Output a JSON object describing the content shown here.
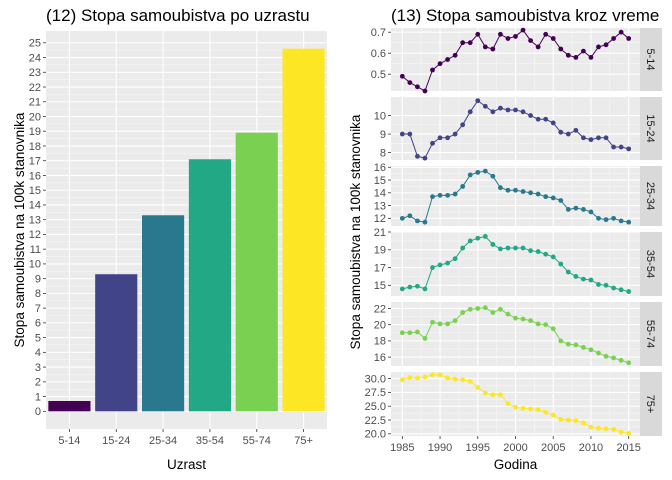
{
  "chart_data": [
    {
      "type": "bar",
      "title": "(12) Stopa samoubistva po uzrastu",
      "xlabel": "Uzrast",
      "ylabel": "Stopa samoubistva na 100k stanovnika",
      "categories": [
        "5-14",
        "15-24",
        "25-34",
        "35-54",
        "55-74",
        "75+"
      ],
      "values": [
        0.7,
        9.3,
        13.3,
        17.1,
        18.9,
        24.6
      ],
      "colors": [
        "#440154",
        "#414487",
        "#2A788E",
        "#22A884",
        "#7AD151",
        "#FDE725"
      ],
      "ylim": [
        0,
        25
      ],
      "yticks": [
        0,
        1,
        2,
        3,
        4,
        5,
        6,
        7,
        8,
        9,
        10,
        11,
        12,
        13,
        14,
        15,
        16,
        17,
        18,
        19,
        20,
        21,
        22,
        23,
        24,
        25
      ],
      "grid": true,
      "legend": "none"
    },
    {
      "type": "line",
      "title": "(13) Stopa samoubistva kroz vreme",
      "xlabel": "Godina",
      "ylabel": "Stopa samoubistva na 100k stanovnika",
      "xlim": [
        1985,
        2015
      ],
      "xticks": [
        1985,
        1990,
        1995,
        2000,
        2005,
        2010,
        2015
      ],
      "x": [
        1985,
        1986,
        1987,
        1988,
        1989,
        1990,
        1991,
        1992,
        1993,
        1994,
        1995,
        1996,
        1997,
        1998,
        1999,
        2000,
        2001,
        2002,
        2003,
        2004,
        2005,
        2006,
        2007,
        2008,
        2009,
        2010,
        2011,
        2012,
        2013,
        2014,
        2015
      ],
      "grid": true,
      "legend": "none",
      "facets": [
        {
          "strip": "5-14",
          "color": "#440154",
          "ylim": [
            0.42,
            0.72
          ],
          "yticks": [
            0.5,
            0.6,
            0.7
          ],
          "ytick_labels": [
            "0.5",
            "0.6",
            "0.7"
          ],
          "values": [
            0.49,
            0.46,
            0.44,
            0.42,
            0.52,
            0.55,
            0.57,
            0.59,
            0.65,
            0.65,
            0.69,
            0.63,
            0.62,
            0.69,
            0.67,
            0.68,
            0.71,
            0.66,
            0.63,
            0.69,
            0.67,
            0.62,
            0.59,
            0.58,
            0.61,
            0.58,
            0.63,
            0.64,
            0.67,
            0.7,
            0.67
          ]
        },
        {
          "strip": "15-24",
          "color": "#414487",
          "ylim": [
            7.6,
            11.0
          ],
          "yticks": [
            8,
            9,
            10
          ],
          "ytick_labels": [
            "8",
            "9",
            "10"
          ],
          "values": [
            9.0,
            9.0,
            7.8,
            7.7,
            8.5,
            8.8,
            8.8,
            9.0,
            9.5,
            10.2,
            10.8,
            10.5,
            10.2,
            10.4,
            10.3,
            10.3,
            10.2,
            10.0,
            9.8,
            9.8,
            9.6,
            9.1,
            9.0,
            9.2,
            8.8,
            8.7,
            8.8,
            8.8,
            8.3,
            8.3,
            8.2
          ]
        },
        {
          "strip": "25-34",
          "color": "#2A788E",
          "ylim": [
            11.4,
            16.1
          ],
          "yticks": [
            12,
            13,
            14,
            15,
            16
          ],
          "ytick_labels": [
            "12",
            "13",
            "14",
            "15",
            "16"
          ],
          "values": [
            12.0,
            12.2,
            11.8,
            11.7,
            13.7,
            13.8,
            13.8,
            13.9,
            14.5,
            15.4,
            15.6,
            15.7,
            15.3,
            14.4,
            14.2,
            14.2,
            14.1,
            14.0,
            13.9,
            13.7,
            13.6,
            13.4,
            12.7,
            12.8,
            12.7,
            12.5,
            12.0,
            11.9,
            12.0,
            11.8,
            11.7
          ]
        },
        {
          "strip": "35-54",
          "color": "#22A884",
          "ylim": [
            13.8,
            21.0
          ],
          "yticks": [
            15,
            17,
            19,
            21
          ],
          "ytick_labels": [
            "15",
            "17",
            "19",
            "21"
          ],
          "values": [
            14.6,
            14.8,
            14.9,
            14.6,
            17.0,
            17.3,
            17.5,
            18.0,
            19.2,
            20.0,
            20.3,
            20.5,
            19.6,
            19.1,
            19.2,
            19.2,
            19.2,
            18.9,
            18.8,
            18.5,
            18.2,
            17.4,
            16.5,
            16.0,
            15.7,
            15.6,
            15.1,
            15.0,
            14.7,
            14.5,
            14.3
          ]
        },
        {
          "strip": "55-74",
          "color": "#7AD151",
          "ylim": [
            14.9,
            22.8
          ],
          "yticks": [
            16,
            18,
            20,
            22
          ],
          "ytick_labels": [
            "16",
            "18",
            "20",
            "22"
          ],
          "values": [
            19.0,
            19.0,
            19.1,
            18.3,
            20.3,
            20.1,
            20.1,
            20.5,
            21.5,
            21.9,
            22.0,
            22.1,
            21.5,
            21.9,
            21.3,
            20.8,
            20.7,
            20.5,
            20.1,
            20.0,
            19.5,
            18.0,
            17.6,
            17.5,
            17.2,
            16.9,
            16.5,
            16.1,
            15.9,
            15.6,
            15.3
          ]
        },
        {
          "strip": "75+",
          "color": "#FDE725",
          "ylim": [
            19.6,
            31.2
          ],
          "yticks": [
            20.0,
            22.5,
            25.0,
            27.5,
            30.0
          ],
          "ytick_labels": [
            "20.0",
            "22.5",
            "25.0",
            "27.5",
            "30.0"
          ],
          "values": [
            29.8,
            30.2,
            30.1,
            30.3,
            30.7,
            30.7,
            30.1,
            29.9,
            29.8,
            29.5,
            28.4,
            27.4,
            27.1,
            27.1,
            25.5,
            24.8,
            24.6,
            24.5,
            24.4,
            23.9,
            23.4,
            22.6,
            22.5,
            22.4,
            22.0,
            21.2,
            21.0,
            20.9,
            20.8,
            20.3,
            20.1
          ]
        }
      ]
    }
  ]
}
